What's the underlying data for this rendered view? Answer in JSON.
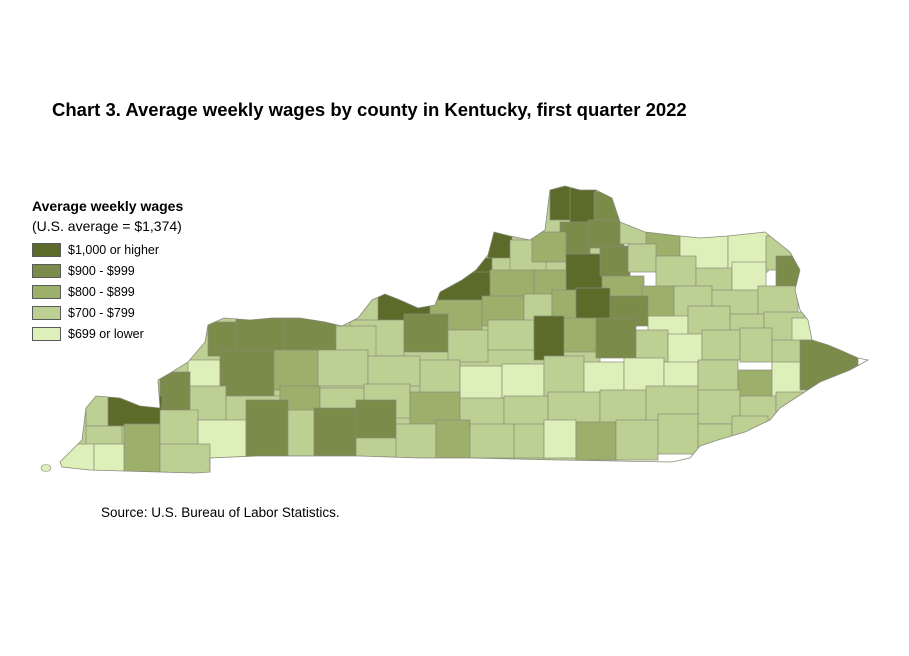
{
  "title": "Chart 3. Average weekly wages by county in Kentucky, first quarter 2022",
  "legend": {
    "title": "Average weekly wages",
    "subtitle": "(U.S. average = $1,374)",
    "items": [
      {
        "label": "$1,000 or higher",
        "color": "#5c6b2a"
      },
      {
        "label": "$900 - $999",
        "color": "#7a8b4a"
      },
      {
        "label": "$800 - $899",
        "color": "#9caf6b"
      },
      {
        "label": "$700 - $799",
        "color": "#bcd094"
      },
      {
        "label": "$699 or lower",
        "color": "#def0b9"
      }
    ]
  },
  "source": "Source: U.S. Bureau of Labor Statistics.",
  "map": {
    "region": "Kentucky",
    "border_color": "#8a8a7a"
  }
}
